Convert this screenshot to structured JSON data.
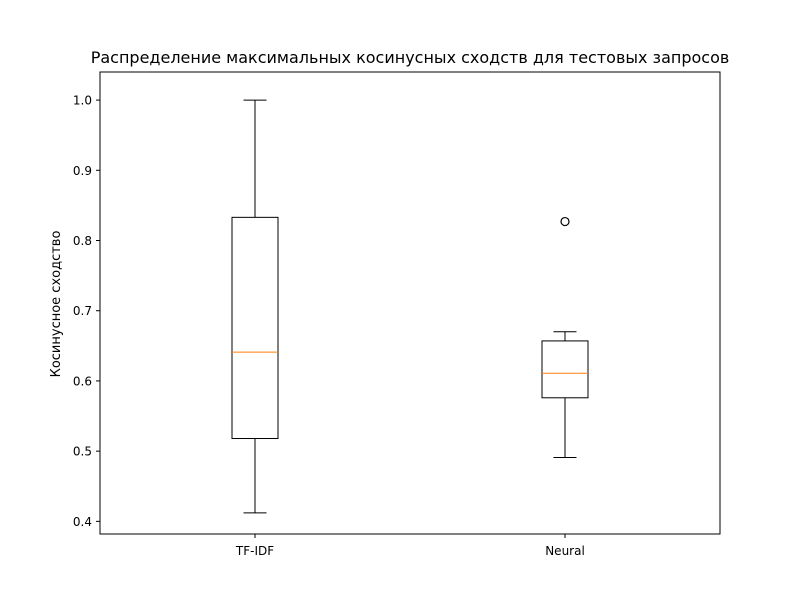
{
  "chart_data": {
    "type": "box",
    "title": "Распределение максимальных косинусных сходств для тестовых запросов",
    "xlabel": "",
    "ylabel": "Косинусное сходство",
    "ylim": [
      0.382,
      1.04
    ],
    "yticks": [
      0.4,
      0.5,
      0.6,
      0.7,
      0.8,
      0.9,
      1.0
    ],
    "ytick_labels": [
      "0.4",
      "0.5",
      "0.6",
      "0.7",
      "0.8",
      "0.9",
      "1.0"
    ],
    "categories": [
      "TF-IDF",
      "Neural"
    ],
    "boxes": [
      {
        "category": "TF-IDF",
        "whisker_low": 0.412,
        "q1": 0.518,
        "median": 0.641,
        "q3": 0.833,
        "whisker_high": 1.0,
        "outliers": []
      },
      {
        "category": "Neural",
        "whisker_low": 0.491,
        "q1": 0.576,
        "median": 0.611,
        "q3": 0.657,
        "whisker_high": 0.67,
        "outliers": [
          0.827
        ]
      }
    ],
    "grid": false,
    "colors": {
      "box": "#000000",
      "median": "#ff7f0e",
      "outlier": "#000000"
    }
  }
}
